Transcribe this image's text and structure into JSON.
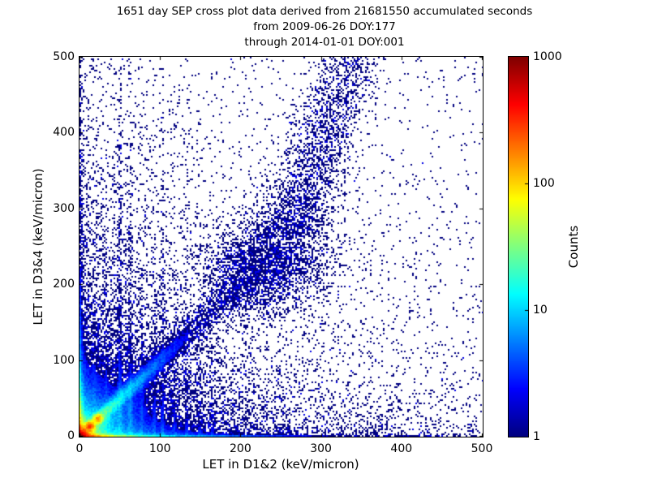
{
  "figure": {
    "background": "#ffffff",
    "title_lines": [
      "1651 day SEP cross plot data derived from 21681550 accumulated seconds",
      "from 2009-06-26 DOY:177",
      "through 2014-01-01 DOY:001"
    ]
  },
  "chart_data": {
    "type": "heatmap",
    "subtype": "2D log-color histogram (scatter-style SEP cross plot)",
    "title": "1651 day SEP cross plot data derived from 21681550 accumulated seconds from 2009-06-26 DOY:177 through 2014-01-01 DOY:001",
    "xlabel": "LET in D1&2 (keV/micron)",
    "ylabel": "LET in D3&4 (keV/micron)",
    "xlim": [
      0,
      500
    ],
    "ylim": [
      0,
      500
    ],
    "x_ticks": [
      0,
      100,
      200,
      300,
      400,
      500
    ],
    "y_ticks": [
      0,
      100,
      200,
      300,
      400,
      500
    ],
    "grid": false,
    "point_color_min": "#000080",
    "colorbar": {
      "label": "Counts",
      "scale": "log",
      "min": 1,
      "max": 1000,
      "ticks": [
        1,
        10,
        100,
        1000
      ],
      "colormap": "jet"
    },
    "features": [
      "intense hotspot at origin peaking near 1000 counts (dark red core, orange/yellow halo)",
      "dense blue cloud over roughly x<90, y<120",
      "diagonal coincidence band y≈x from origin to ~(260,260) with bright knots near (13,14) and (23,24), cyan/green near origin fading to blue",
      "diffuse dense clump on the diagonal around (240,232)",
      "steeper diffuse plume continuing from ~(258,262) up toward (335,500)",
      "thin bright band along y≈0 for all x (orange near origin fading to cyan then blue)",
      "thin dense column along x≈0 for all y",
      "several faint vertical streaks near x≈18,33,50,63,77,93,103,118,133,149,164",
      "sparse single-count (dark navy) speckle elsewhere, very sparse in upper-right"
    ],
    "density_model": {
      "note": "procedural approximation of the 2D histogram; lambda = expected counts per 2x2px bin, colored via log10 jet scale 1..1000",
      "seed": 42,
      "components": [
        {
          "type": "radial",
          "cx": 0,
          "cy": 0,
          "amp": 1000,
          "scale": 5.5,
          "aspect": 1.1
        },
        {
          "type": "cloud",
          "amp": 30,
          "xscale": 35,
          "yscale": 30
        },
        {
          "type": "cloud",
          "amp": 1.5,
          "xscale": 90,
          "yscale": 80
        },
        {
          "type": "cloud",
          "amp": 1.1,
          "xscale": 180,
          "yscale": 70
        },
        {
          "type": "cloud",
          "amp": 0.9,
          "xscale": 60,
          "yscale": 170
        },
        {
          "type": "cloud",
          "amp": 0.12,
          "xscale": 260,
          "yscale": 240
        },
        {
          "type": "bottom_band",
          "amps": [
            [
              500,
              22
            ],
            [
              25,
              90
            ],
            [
              2.2,
              300
            ],
            [
              0.8,
              100000
            ]
          ],
          "yscale": 1.4
        },
        {
          "type": "bottom_band",
          "amps": [
            [
              5,
              150
            ]
          ],
          "yscale": 6
        },
        {
          "type": "left_band",
          "amps": [
            [
              400,
              18
            ],
            [
              20,
              70
            ],
            [
              1.5,
              250
            ],
            [
              0.9,
              100000
            ]
          ],
          "xscale": 1.7
        },
        {
          "type": "left_band",
          "amps": [
            [
              3.5,
              120
            ]
          ],
          "xscale": 4
        },
        {
          "type": "ridge",
          "slope": 1.0,
          "amps": [
            [
              60,
              18
            ],
            [
              26,
              60
            ],
            [
              2.4,
              150
            ]
          ],
          "sigma0": 3,
          "sigma_growth": 0.028,
          "tmax": 320
        },
        {
          "type": "ridge",
          "slope": 0.5,
          "amps": [
            [
              7,
              30
            ]
          ],
          "sigma0": 3,
          "sigma_growth": 0.05,
          "tmax": 160
        },
        {
          "type": "ridge",
          "slope": 0.72,
          "amps": [
            [
              6,
              40
            ]
          ],
          "sigma0": 3,
          "sigma_growth": 0.05,
          "tmax": 200
        },
        {
          "type": "gauss",
          "cx": 13,
          "cy": 14,
          "amp": 260,
          "sx": 2.8,
          "sy": 2.8
        },
        {
          "type": "gauss",
          "cx": 23,
          "cy": 24,
          "amp": 130,
          "sx": 3.2,
          "sy": 3.2
        },
        {
          "type": "gauss",
          "cx": 240,
          "cy": 232,
          "amp": 1.15,
          "sx": 38,
          "sy": 30
        },
        {
          "type": "gauss",
          "cx": 205,
          "cy": 200,
          "amp": 0.8,
          "sx": 28,
          "sy": 24
        },
        {
          "type": "plume",
          "x0": 258,
          "y0": 262,
          "slopexy": 0.33,
          "amp": 1.0,
          "sigma": 22,
          "fade": 300
        },
        {
          "type": "vstreak",
          "x": 18,
          "amp": 2.2,
          "yscale": 55,
          "sigma": 1.4
        },
        {
          "type": "vstreak",
          "x": 33,
          "amp": 2.0,
          "yscale": 70,
          "sigma": 1.4
        },
        {
          "type": "vstreak",
          "x": 50,
          "amp": 3.2,
          "yscale": 150,
          "sigma": 1.6
        },
        {
          "type": "vstreak",
          "x": 63,
          "amp": 2.8,
          "yscale": 135,
          "sigma": 1.5
        },
        {
          "type": "vstreak",
          "x": 77,
          "amp": 1.8,
          "yscale": 85,
          "sigma": 1.4
        },
        {
          "type": "vstreak",
          "x": 93,
          "amp": 1.6,
          "yscale": 75,
          "sigma": 1.4
        },
        {
          "type": "vstreak",
          "x": 103,
          "amp": 1.7,
          "yscale": 120,
          "sigma": 1.5
        },
        {
          "type": "vstreak",
          "x": 118,
          "amp": 1.5,
          "yscale": 95,
          "sigma": 1.4
        },
        {
          "type": "vstreak",
          "x": 133,
          "amp": 1.5,
          "yscale": 105,
          "sigma": 1.5
        },
        {
          "type": "vstreak",
          "x": 149,
          "amp": 1.3,
          "yscale": 90,
          "sigma": 1.4
        },
        {
          "type": "vstreak",
          "x": 164,
          "amp": 1.2,
          "yscale": 80,
          "sigma": 1.4
        },
        {
          "type": "uniform",
          "amp": 0.022
        }
      ]
    }
  }
}
